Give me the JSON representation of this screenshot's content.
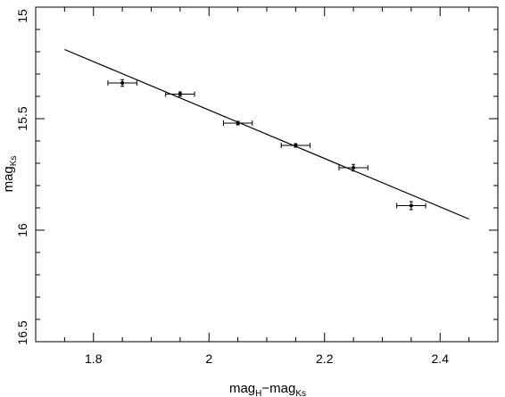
{
  "chart_data": {
    "type": "scatter",
    "xlabel": "mag",
    "xlabel_sub1": "H",
    "xlabel_mid": "−mag",
    "xlabel_sub2": "Ks",
    "ylabel": "mag",
    "ylabel_sub": "Ks",
    "xlim": [
      1.7,
      2.5
    ],
    "ylim": [
      16.5,
      15.0
    ],
    "y_inverted": true,
    "grid": false,
    "x_ticks": [
      1.8,
      2,
      2.2,
      2.4
    ],
    "x_tick_labels": [
      "1.8",
      "2",
      "2.2",
      "2.4"
    ],
    "y_ticks": [
      15,
      15.5,
      16,
      16.5
    ],
    "y_tick_labels": [
      "15",
      "15.5",
      "16",
      "16.5"
    ],
    "points": [
      {
        "x": 1.85,
        "y": 15.34,
        "xerr": 0.025,
        "yerr": 0.015
      },
      {
        "x": 1.95,
        "y": 15.39,
        "xerr": 0.025,
        "yerr": 0.01
      },
      {
        "x": 2.05,
        "y": 15.52,
        "xerr": 0.025,
        "yerr": 0.008
      },
      {
        "x": 2.15,
        "y": 15.62,
        "xerr": 0.025,
        "yerr": 0.008
      },
      {
        "x": 2.25,
        "y": 15.72,
        "xerr": 0.025,
        "yerr": 0.015
      },
      {
        "x": 2.35,
        "y": 15.89,
        "xerr": 0.025,
        "yerr": 0.018
      }
    ],
    "fit_line": {
      "x": [
        1.75,
        2.45
      ],
      "y": [
        15.19,
        15.95
      ]
    }
  }
}
